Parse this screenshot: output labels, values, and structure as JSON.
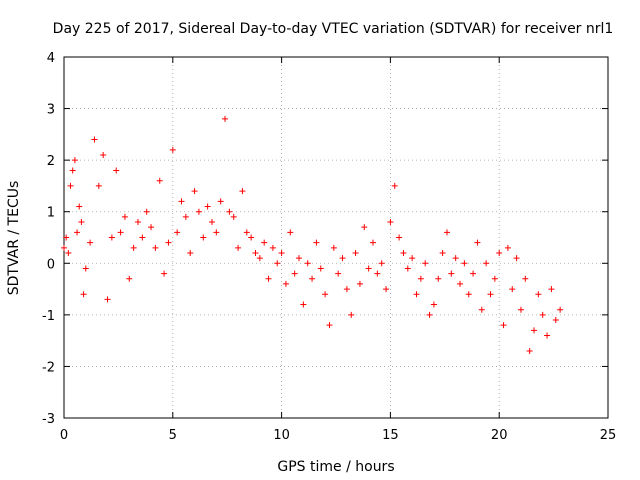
{
  "chart_data": {
    "type": "scatter",
    "title": "Day 225 of 2017, Sidereal Day-to-day VTEC variation (SDTVAR) for receiver nrl1",
    "xlabel": "GPS time / hours",
    "ylabel": "SDTVAR / TECUs",
    "xlim": [
      0,
      25
    ],
    "ylim": [
      -3,
      4
    ],
    "xticks": [
      0,
      5,
      10,
      15,
      20,
      25
    ],
    "yticks": [
      -3,
      -2,
      -1,
      0,
      1,
      2,
      3,
      4
    ],
    "xtick_labels": [
      "0",
      "5",
      "10",
      "15",
      "20",
      "25"
    ],
    "ytick_labels": [
      "-3",
      "-2",
      "-1",
      "0",
      "1",
      "2",
      "3",
      "4"
    ],
    "grid": true,
    "marker": "plus",
    "color": "#ff0000",
    "x": [
      0.0,
      0.1,
      0.2,
      0.3,
      0.4,
      0.5,
      0.6,
      0.7,
      0.8,
      0.9,
      1.0,
      1.2,
      1.4,
      1.6,
      1.8,
      2.0,
      2.2,
      2.4,
      2.6,
      2.8,
      3.0,
      3.2,
      3.4,
      3.6,
      3.8,
      4.0,
      4.2,
      4.4,
      4.6,
      4.8,
      5.0,
      5.2,
      5.4,
      5.6,
      5.8,
      6.0,
      6.2,
      6.4,
      6.6,
      6.8,
      7.0,
      7.2,
      7.4,
      7.6,
      7.8,
      8.0,
      8.2,
      8.4,
      8.6,
      8.8,
      9.0,
      9.2,
      9.4,
      9.6,
      9.8,
      10.0,
      10.2,
      10.4,
      10.6,
      10.8,
      11.0,
      11.2,
      11.4,
      11.6,
      11.8,
      12.0,
      12.2,
      12.4,
      12.6,
      12.8,
      13.0,
      13.2,
      13.4,
      13.6,
      13.8,
      14.0,
      14.2,
      14.4,
      14.6,
      14.8,
      15.0,
      15.2,
      15.4,
      15.6,
      15.8,
      16.0,
      16.2,
      16.4,
      16.6,
      16.8,
      17.0,
      17.2,
      17.4,
      17.6,
      17.8,
      18.0,
      18.2,
      18.4,
      18.6,
      18.8,
      19.0,
      19.2,
      19.4,
      19.6,
      19.8,
      20.0,
      20.2,
      20.4,
      20.6,
      20.8,
      21.0,
      21.2,
      21.4,
      21.6,
      21.8,
      22.0,
      22.2,
      22.4,
      22.6,
      22.8
    ],
    "y": [
      0.3,
      0.5,
      0.2,
      1.5,
      1.8,
      2.0,
      0.6,
      1.1,
      0.8,
      -0.6,
      -0.1,
      0.4,
      2.4,
      1.5,
      2.1,
      -0.7,
      0.5,
      1.8,
      0.6,
      0.9,
      -0.3,
      0.3,
      0.8,
      0.5,
      1.0,
      0.7,
      0.3,
      1.6,
      -0.2,
      0.4,
      2.2,
      0.6,
      1.2,
      0.9,
      0.2,
      1.4,
      1.0,
      0.5,
      1.1,
      0.8,
      0.6,
      1.2,
      2.8,
      1.0,
      0.9,
      0.3,
      1.4,
      0.6,
      0.5,
      0.2,
      0.1,
      0.4,
      -0.3,
      0.3,
      0.0,
      0.2,
      -0.4,
      0.6,
      -0.2,
      0.1,
      -0.8,
      0.0,
      -0.3,
      0.4,
      -0.1,
      -0.6,
      -1.2,
      0.3,
      -0.2,
      0.1,
      -0.5,
      -1.0,
      0.2,
      -0.4,
      0.7,
      -0.1,
      0.4,
      -0.2,
      0.0,
      -0.5,
      0.8,
      1.5,
      0.5,
      0.2,
      -0.1,
      0.1,
      -0.6,
      -0.3,
      0.0,
      -1.0,
      -0.8,
      -0.3,
      0.2,
      0.6,
      -0.2,
      0.1,
      -0.4,
      0.0,
      -0.6,
      -0.2,
      0.4,
      -0.9,
      0.0,
      -0.6,
      -0.3,
      0.2,
      -1.2,
      0.3,
      -0.5,
      0.1,
      -0.9,
      -0.3,
      -1.7,
      -1.3,
      -0.6,
      -1.0,
      -1.4,
      -0.5,
      -1.1,
      -0.9
    ]
  }
}
